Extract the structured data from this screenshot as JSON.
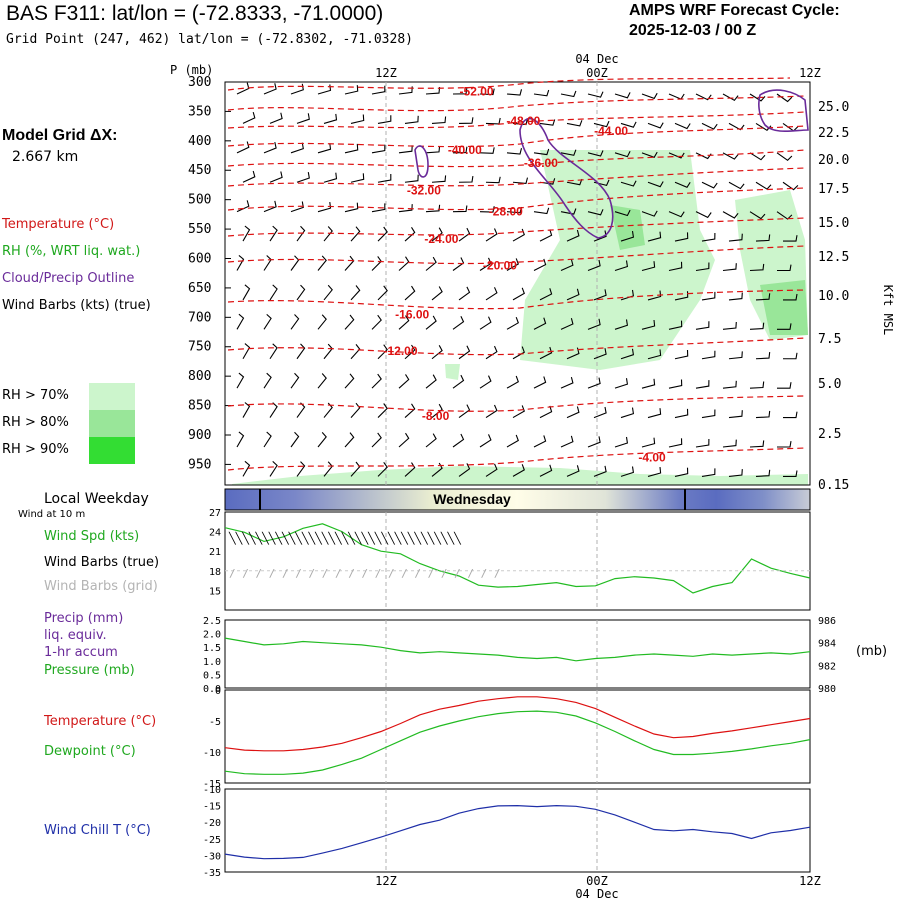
{
  "header": {
    "title": "BAS F311:  lat/lon = (-72.8333, -71.0000)",
    "grid_point": "Grid Point (247, 462) lat/lon = (-72.8302, -71.0328)",
    "cycle_label": "AMPS WRF Forecast Cycle:",
    "cycle_value": "2025-12-03 / 00  Z"
  },
  "sidebar": {
    "model_grid_label": "Model Grid ΔX:",
    "model_grid_value": "2.667 km",
    "legend_temperature": "Temperature (°C)",
    "legend_rh": "RH (%, WRT liq. wat.)",
    "legend_cloud": "Cloud/Precip Outline",
    "legend_wind": "Wind Barbs (kts) (true)",
    "rh_levels": [
      {
        "label": "RH > 70%",
        "color": "#ccf5cc"
      },
      {
        "label": "RH > 80%",
        "color": "#99e699"
      },
      {
        "label": "RH > 90%",
        "color": "#33dd33"
      }
    ]
  },
  "colors": {
    "temperature": "#dd1111",
    "rh_line": "#22bb22",
    "cloud": "#6a2b9a",
    "wind_chill": "#1f2fa8",
    "pressure": "#22bb22",
    "grid": "#b0b0b0"
  },
  "time_axis": {
    "top_date": "04 Dec",
    "bottom_date": "04 Dec",
    "ticks": [
      "12Z",
      "00Z",
      "12Z"
    ]
  },
  "weekday_bar": {
    "label": "Local Weekday",
    "day": "Wednesday",
    "sublabel": "Wind at 10 m"
  },
  "chart_data": [
    {
      "type": "contour",
      "name": "cross-section",
      "ylabel": "P (mb)",
      "y2label": "Kft MSL",
      "y_ticks": [
        "300",
        "350",
        "400",
        "450",
        "500",
        "550",
        "600",
        "650",
        "700",
        "750",
        "800",
        "850",
        "900",
        "950"
      ],
      "y2_ticks": [
        "25.0",
        "22.5",
        "20.0",
        "17.5",
        "15.0",
        "12.5",
        "10.0",
        "7.5",
        "5.0",
        "2.5",
        "0.15"
      ],
      "temperature_contours": [
        {
          "label": "-52.00",
          "p": 316,
          "t": 0.43
        },
        {
          "label": "-48.00",
          "p": 366,
          "t": 0.51
        },
        {
          "label": "-44.00",
          "p": 383,
          "t": 0.66
        },
        {
          "label": "-40.00",
          "p": 416,
          "t": 0.41
        },
        {
          "label": "-36.00",
          "p": 438,
          "t": 0.54
        },
        {
          "label": "-32.00",
          "p": 484,
          "t": 0.34
        },
        {
          "label": "-28.00",
          "p": 520,
          "t": 0.48
        },
        {
          "label": "-24.00",
          "p": 567,
          "t": 0.37
        },
        {
          "label": "-20.00",
          "p": 612,
          "t": 0.47
        },
        {
          "label": "-16.00",
          "p": 695,
          "t": 0.32
        },
        {
          "label": "-12.00",
          "p": 757,
          "t": 0.3
        },
        {
          "label": "-8.00",
          "p": 868,
          "t": 0.36
        },
        {
          "label": "-4.00",
          "p": 938,
          "t": 0.73
        }
      ]
    },
    {
      "type": "line",
      "name": "wind",
      "ylabel_series": [
        "Wind Spd (kts)",
        "Wind Barbs (true)",
        "Wind Barbs (grid)"
      ],
      "ylim": [
        12,
        27
      ],
      "y_ticks": [
        "27",
        "24",
        "21",
        "18",
        "15"
      ],
      "values": [
        24.6,
        23.9,
        22.5,
        23.2,
        24.5,
        25.2,
        24.0,
        22.0,
        21.0,
        20.6,
        19.1,
        18.0,
        17.2,
        15.8,
        15.5,
        15.6,
        15.9,
        16.2,
        15.6,
        15.7,
        16.8,
        17.1,
        16.9,
        16.5,
        14.6,
        15.6,
        16.2,
        19.8,
        18.4,
        17.6,
        16.9
      ],
      "barb_top": "╲╲╲╲╲╲╲╲╲╲╲╲╲╲╲╲╲╲╲╲╲╲╲╲╲╲╲╲╲╲╲╲╲╲╲",
      "barb_grid": "/ / / / / / / / / / / / / / / / / / / / /"
    },
    {
      "type": "line",
      "name": "precip-pressure",
      "ylabel_series": [
        "Precip (mm)",
        "liq. equiv.",
        "1-hr accum",
        "Pressure (mb)"
      ],
      "ylim": [
        0,
        2.5
      ],
      "y_ticks": [
        "2.5",
        "2.0",
        "1.5",
        "1.0",
        "0.5",
        "0.0"
      ],
      "y2_ticks": [
        "986",
        "984",
        "982",
        "980"
      ],
      "y2label": "(mb)",
      "y2lim": [
        980,
        986
      ],
      "pressure_values": [
        984.4,
        984.1,
        983.8,
        983.9,
        984.1,
        984.0,
        983.9,
        983.8,
        983.6,
        983.3,
        983.1,
        983.2,
        983.1,
        983.0,
        982.9,
        982.7,
        982.6,
        982.7,
        982.4,
        982.6,
        982.7,
        982.9,
        983.0,
        982.9,
        982.8,
        983.0,
        982.9,
        983.0,
        983.1,
        983.0,
        983.2
      ]
    },
    {
      "type": "line",
      "name": "temperature-dewpoint",
      "ylabel_series": [
        "Temperature (°C)",
        "Dewpoint (°C)"
      ],
      "ylim": [
        -15,
        0
      ],
      "y_ticks": [
        "0",
        "-5",
        "-10",
        "-15"
      ],
      "series": [
        {
          "name": "Temperature (°C)",
          "values": [
            -9.3,
            -9.7,
            -9.8,
            -9.8,
            -9.6,
            -9.2,
            -8.6,
            -7.7,
            -6.7,
            -5.4,
            -4.0,
            -3.1,
            -2.5,
            -1.8,
            -1.4,
            -1.1,
            -1.1,
            -1.4,
            -2.0,
            -3.0,
            -4.4,
            -5.8,
            -7.1,
            -7.7,
            -7.5,
            -7.0,
            -6.6,
            -6.1,
            -5.6,
            -5.1,
            -4.6
          ]
        },
        {
          "name": "Dewpoint (°C)",
          "values": [
            -13.1,
            -13.5,
            -13.6,
            -13.6,
            -13.4,
            -12.9,
            -12.0,
            -11.0,
            -9.6,
            -8.2,
            -6.8,
            -5.8,
            -5.0,
            -4.3,
            -3.8,
            -3.5,
            -3.4,
            -3.6,
            -4.2,
            -5.3,
            -6.7,
            -8.2,
            -9.6,
            -10.4,
            -10.4,
            -10.2,
            -9.9,
            -9.5,
            -9.0,
            -8.6,
            -8.0
          ]
        }
      ]
    },
    {
      "type": "line",
      "name": "wind-chill",
      "ylabel_series": [
        "Wind Chill T (°C)"
      ],
      "ylim": [
        -35,
        -10
      ],
      "y_ticks": [
        "-10",
        "-15",
        "-20",
        "-25",
        "-30",
        "-35"
      ],
      "values": [
        -29.6,
        -30.5,
        -31.0,
        -30.9,
        -30.6,
        -29.3,
        -27.9,
        -26.2,
        -24.5,
        -22.6,
        -20.7,
        -19.4,
        -17.3,
        -15.9,
        -15.1,
        -15.0,
        -15.3,
        -15.0,
        -15.2,
        -16.1,
        -17.8,
        -20.0,
        -22.2,
        -22.6,
        -22.2,
        -22.9,
        -23.4,
        -24.9,
        -23.2,
        -22.5,
        -21.5
      ]
    }
  ]
}
